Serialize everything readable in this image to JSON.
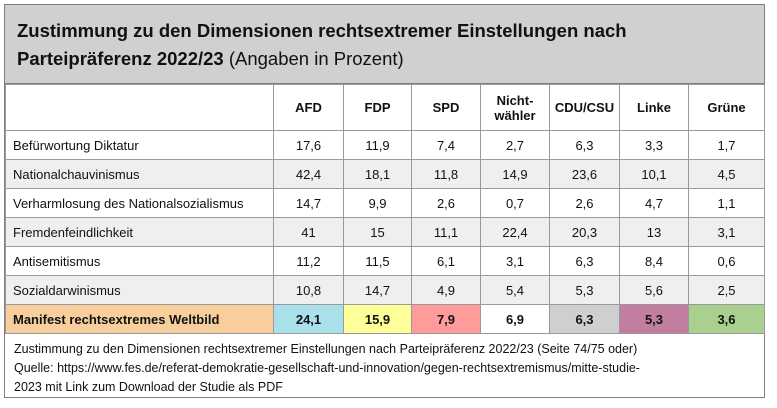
{
  "header": {
    "title_bold_1": "Zustimmung zu den Dimensionen rechtsextremer Einstellungen nach",
    "title_bold_2": "Parteipräferenz 2022/23",
    "title_normal": " (Angaben in Prozent)"
  },
  "chart_data": {
    "type": "table",
    "title": "Zustimmung zu den Dimensionen rechtsextremer Einstellungen nach Parteipräferenz 2022/23 (Angaben in Prozent)",
    "columns": [
      "AFD",
      "FDP",
      "SPD",
      "Nicht-\nwähler",
      "CDU/CSU",
      "Linke",
      "Grüne"
    ],
    "rows": [
      {
        "label": "Befürwortung Diktatur",
        "values": [
          "17,6",
          "11,9",
          "7,4",
          "2,7",
          "6,3",
          "3,3",
          "1,7"
        ]
      },
      {
        "label": "Nationalchauvinismus",
        "values": [
          "42,4",
          "18,1",
          "11,8",
          "14,9",
          "23,6",
          "10,1",
          "4,5"
        ]
      },
      {
        "label": "Verharmlosung des Nationalsozialismus",
        "values": [
          "14,7",
          "9,9",
          "2,6",
          "0,7",
          "2,6",
          "4,7",
          "1,1"
        ]
      },
      {
        "label": "Fremdenfeindlichkeit",
        "values": [
          "41",
          "15",
          "11,1",
          "22,4",
          "20,3",
          "13",
          "3,1"
        ]
      },
      {
        "label": "Antisemitismus",
        "values": [
          "11,2",
          "11,5",
          "6,1",
          "3,1",
          "6,3",
          "8,4",
          "0,6"
        ]
      },
      {
        "label": "Sozialdarwinismus",
        "values": [
          "10,8",
          "14,7",
          "4,9",
          "5,4",
          "5,3",
          "5,6",
          "2,5"
        ]
      }
    ],
    "summary": {
      "label": "Manifest rechtsextremes Weltbild",
      "values": [
        "24,1",
        "15,9",
        "7,9",
        "6,9",
        "6,3",
        "5,3",
        "3,6"
      ],
      "colors": [
        "#a9e0ea",
        "#ffff99",
        "#ff9b9b",
        "#ffffff",
        "#cfcfcf",
        "#c27ea1",
        "#a9d08e"
      ],
      "label_color": "#f7ce9c"
    }
  },
  "source": {
    "line1": "Zustimmung zu den Dimensionen rechtsextremer Einstellungen nach Parteipräferenz 2022/23 (Seite 74/75 oder)",
    "line2": "Quelle: https://www.fes.de/referat-demokratie-gesellschaft-und-innovation/gegen-rechtsextremismus/mitte-studie-",
    "line3": "2023 mit Link zum Download der Studie als PDF"
  }
}
